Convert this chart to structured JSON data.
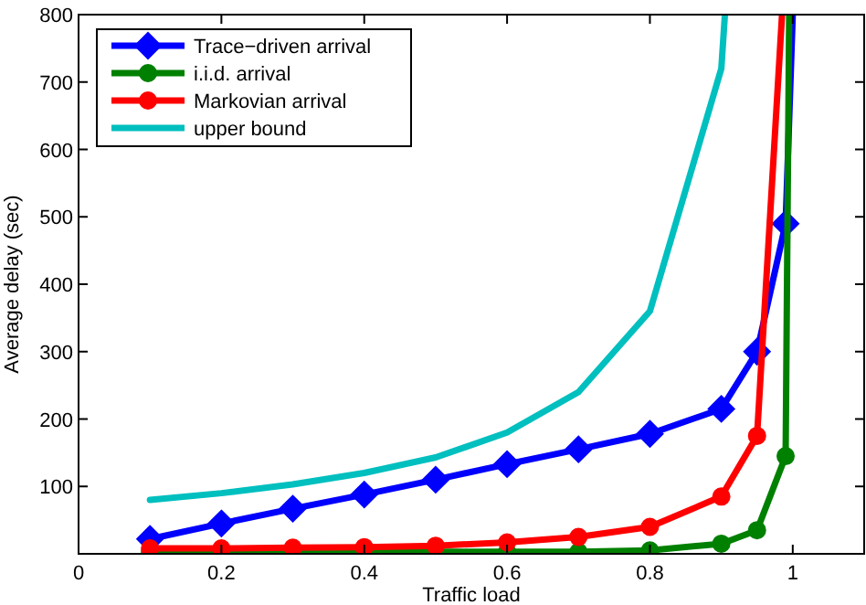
{
  "chart_data": {
    "type": "line",
    "xlabel": "Traffic load",
    "ylabel": "Average delay (sec)",
    "xlim": [
      0,
      1.1
    ],
    "xticks": [
      0,
      0.2,
      0.4,
      0.6,
      0.8,
      1
    ],
    "ylim": [
      0,
      800
    ],
    "yticks": [
      100,
      200,
      300,
      400,
      500,
      600,
      700,
      800
    ],
    "legend": "top left",
    "grid": false,
    "line_style": "solid",
    "series": [
      {
        "name": "Trace−driven arrival",
        "color": "#0000ff",
        "marker": "diamond",
        "x": [
          0.1,
          0.2,
          0.3,
          0.4,
          0.5,
          0.6,
          0.7,
          0.8,
          0.9,
          0.95,
          0.99,
          1.0
        ],
        "values": [
          22,
          45,
          67,
          88,
          110,
          133,
          155,
          178,
          215,
          300,
          490,
          800
        ]
      },
      {
        "name": "i.i.d. arrival",
        "color": "#008000",
        "marker": "circle",
        "x": [
          0.1,
          0.2,
          0.3,
          0.4,
          0.5,
          0.6,
          0.7,
          0.8,
          0.9,
          0.95,
          0.99,
          0.995
        ],
        "values": [
          3,
          3,
          3,
          3,
          3,
          3,
          3,
          5,
          15,
          35,
          145,
          800
        ]
      },
      {
        "name": "Markovian arrival",
        "color": "#ff0000",
        "marker": "circle",
        "x": [
          0.1,
          0.2,
          0.3,
          0.4,
          0.5,
          0.6,
          0.7,
          0.8,
          0.9,
          0.95,
          0.985
        ],
        "values": [
          8,
          8,
          9,
          10,
          12,
          17,
          25,
          40,
          85,
          175,
          800
        ]
      },
      {
        "name": "upper bound",
        "color": "#00bfbf",
        "marker": "none",
        "x": [
          0.1,
          0.2,
          0.3,
          0.4,
          0.5,
          0.6,
          0.7,
          0.8,
          0.9,
          0.905
        ],
        "values": [
          80,
          90,
          103,
          120,
          143,
          180,
          240,
          360,
          720,
          800
        ]
      }
    ]
  }
}
